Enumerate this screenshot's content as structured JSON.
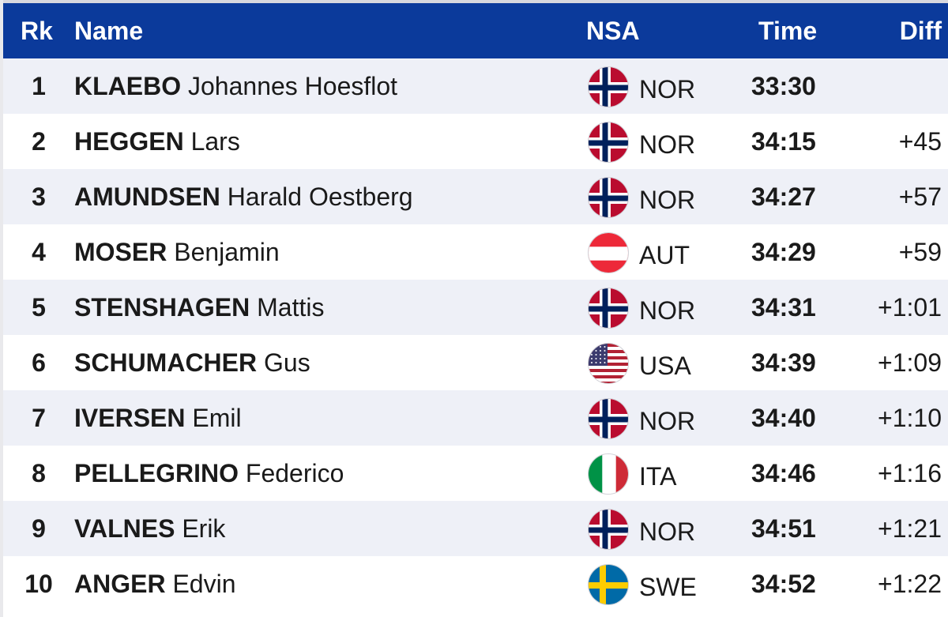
{
  "header": {
    "rk": "Rk",
    "name": "Name",
    "nsa": "NSA",
    "time": "Time",
    "diff": "Diff"
  },
  "colors": {
    "header_bg": "#0b3a9b",
    "row_alt": "#eef0f7"
  },
  "rows": [
    {
      "rk": "1",
      "last": "KLAEBO",
      "first": "Johannes Hoesflot",
      "nsa": "NOR",
      "flag": "norway-flag-icon",
      "time": "33:30",
      "diff": ""
    },
    {
      "rk": "2",
      "last": "HEGGEN",
      "first": "Lars",
      "nsa": "NOR",
      "flag": "norway-flag-icon",
      "time": "34:15",
      "diff": "+45"
    },
    {
      "rk": "3",
      "last": "AMUNDSEN",
      "first": "Harald Oestberg",
      "nsa": "NOR",
      "flag": "norway-flag-icon",
      "time": "34:27",
      "diff": "+57"
    },
    {
      "rk": "4",
      "last": "MOSER",
      "first": "Benjamin",
      "nsa": "AUT",
      "flag": "austria-flag-icon",
      "time": "34:29",
      "diff": "+59"
    },
    {
      "rk": "5",
      "last": "STENSHAGEN",
      "first": "Mattis",
      "nsa": "NOR",
      "flag": "norway-flag-icon",
      "time": "34:31",
      "diff": "+1:01"
    },
    {
      "rk": "6",
      "last": "SCHUMACHER",
      "first": "Gus",
      "nsa": "USA",
      "flag": "usa-flag-icon",
      "time": "34:39",
      "diff": "+1:09"
    },
    {
      "rk": "7",
      "last": "IVERSEN",
      "first": "Emil",
      "nsa": "NOR",
      "flag": "norway-flag-icon",
      "time": "34:40",
      "diff": "+1:10"
    },
    {
      "rk": "8",
      "last": "PELLEGRINO",
      "first": "Federico",
      "nsa": "ITA",
      "flag": "italy-flag-icon",
      "time": "34:46",
      "diff": "+1:16"
    },
    {
      "rk": "9",
      "last": "VALNES",
      "first": "Erik",
      "nsa": "NOR",
      "flag": "norway-flag-icon",
      "time": "34:51",
      "diff": "+1:21"
    },
    {
      "rk": "10",
      "last": "ANGER",
      "first": "Edvin",
      "nsa": "SWE",
      "flag": "sweden-flag-icon",
      "time": "34:52",
      "diff": "+1:22"
    }
  ]
}
